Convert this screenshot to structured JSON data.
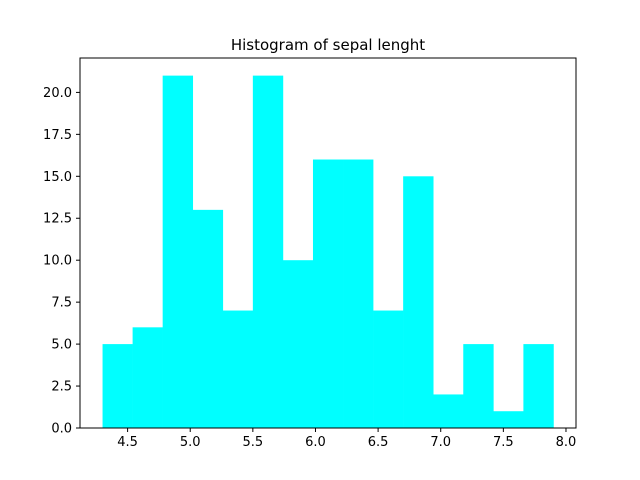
{
  "chart_data": {
    "type": "bar",
    "title": "Histogram of sepal lenght",
    "xlabel": "",
    "ylabel": "",
    "bar_color": "#00ffff",
    "bin_edges": [
      4.3,
      4.54,
      4.78,
      5.02,
      5.26,
      5.5,
      5.74,
      5.98,
      6.22,
      6.46,
      6.7,
      6.94,
      7.18,
      7.42,
      7.66,
      7.9
    ],
    "values": [
      5,
      6,
      21,
      13,
      7,
      21,
      10,
      16,
      16,
      7,
      15,
      2,
      5,
      1,
      5
    ],
    "xlim": [
      4.12,
      8.08
    ],
    "ylim": [
      0,
      22.05
    ],
    "x_ticks": [
      4.5,
      5.0,
      5.5,
      6.0,
      6.5,
      7.0,
      7.5,
      8.0
    ],
    "x_tick_labels": [
      "4.5",
      "5.0",
      "5.5",
      "6.0",
      "6.5",
      "7.0",
      "7.5",
      "8.0"
    ],
    "y_ticks": [
      0,
      2.5,
      5,
      7.5,
      10,
      12.5,
      15,
      17.5,
      20
    ],
    "y_tick_labels": [
      "0.0",
      "2.5",
      "5.0",
      "7.5",
      "10.0",
      "12.5",
      "15.0",
      "17.5",
      "20.0"
    ],
    "grid": false,
    "legend": false
  }
}
